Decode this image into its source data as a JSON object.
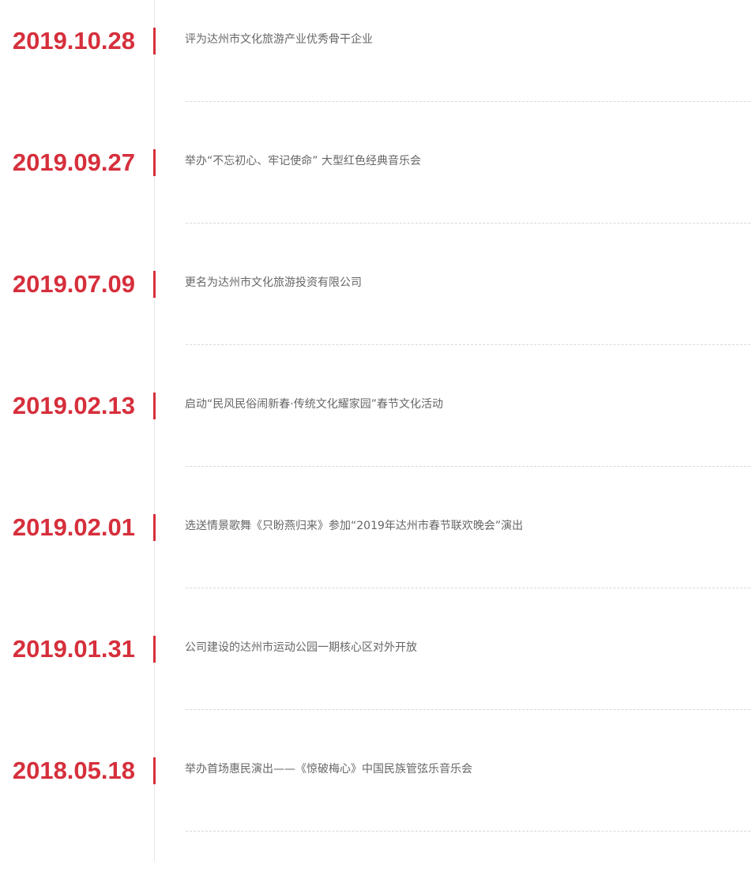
{
  "accent_color": "#d62f3c",
  "timeline": [
    {
      "date": "2019.10.28",
      "event": "评为达州市文化旅游产业优秀骨干企业"
    },
    {
      "date": "2019.09.27",
      "event": "举办“不忘初心、牢记使命” 大型红色经典音乐会"
    },
    {
      "date": "2019.07.09",
      "event": "更名为达州市文化旅游投资有限公司"
    },
    {
      "date": "2019.02.13",
      "event": "启动“民风民俗闹新春·传统文化耀家园”春节文化活动"
    },
    {
      "date": "2019.02.01",
      "event": "选送情景歌舞《只盼燕归来》参加“2019年达州市春节联欢晚会”演出"
    },
    {
      "date": "2019.01.31",
      "event": "公司建设的达州市运动公园一期核心区对外开放"
    },
    {
      "date": "2018.05.18",
      "event": "举办首场惠民演出——《惊破梅心》中国民族管弦乐音乐会"
    }
  ]
}
